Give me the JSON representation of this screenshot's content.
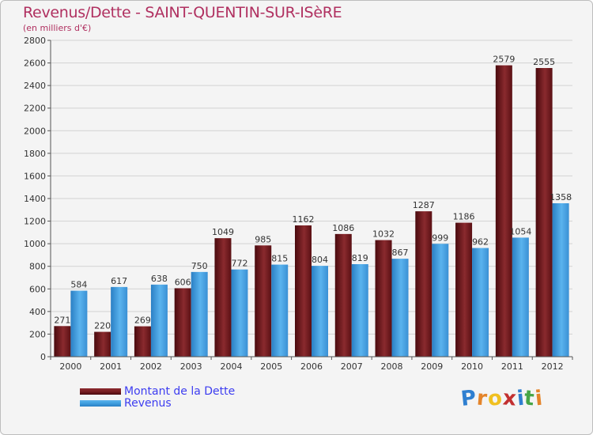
{
  "colors": {
    "dette": "#7a1e22",
    "revenus": "#3f9ede",
    "title": "#b03060",
    "legend_text": "#3d3df0"
  },
  "title": "Revenus/Dette - SAINT-QUENTIN-SUR-ISèRE",
  "subtitle": "(en milliers d'€)",
  "legend": {
    "dette": "Montant de la Dette",
    "revenus": "Revenus"
  },
  "logo": {
    "letters": [
      "P",
      "r",
      "o",
      "x",
      "i",
      "t",
      "i"
    ],
    "colors": [
      "#2f7fd0",
      "#e4842a",
      "#f0c020",
      "#c23030",
      "#2f7fd0",
      "#46a546",
      "#e4842a"
    ]
  },
  "chart_data": {
    "type": "bar",
    "title": "Revenus/Dette - SAINT-QUENTIN-SUR-ISèRE",
    "ylabel": "(en milliers d'€)",
    "categories": [
      "2000",
      "2001",
      "2002",
      "2003",
      "2004",
      "2005",
      "2006",
      "2007",
      "2008",
      "2009",
      "2010",
      "2011",
      "2012"
    ],
    "series": [
      {
        "name": "Montant de la Dette",
        "values": [
          271,
          220,
          269,
          606,
          1049,
          985,
          1162,
          1086,
          1032,
          1287,
          1186,
          2579,
          2555
        ]
      },
      {
        "name": "Revenus",
        "values": [
          584,
          617,
          638,
          750,
          772,
          815,
          804,
          819,
          867,
          999,
          962,
          1054,
          1358
        ]
      }
    ],
    "ylim": [
      0,
      2800
    ],
    "yticks": [
      0,
      200,
      400,
      600,
      800,
      1000,
      1200,
      1400,
      1600,
      1800,
      2000,
      2200,
      2400,
      2600,
      2800
    ]
  }
}
